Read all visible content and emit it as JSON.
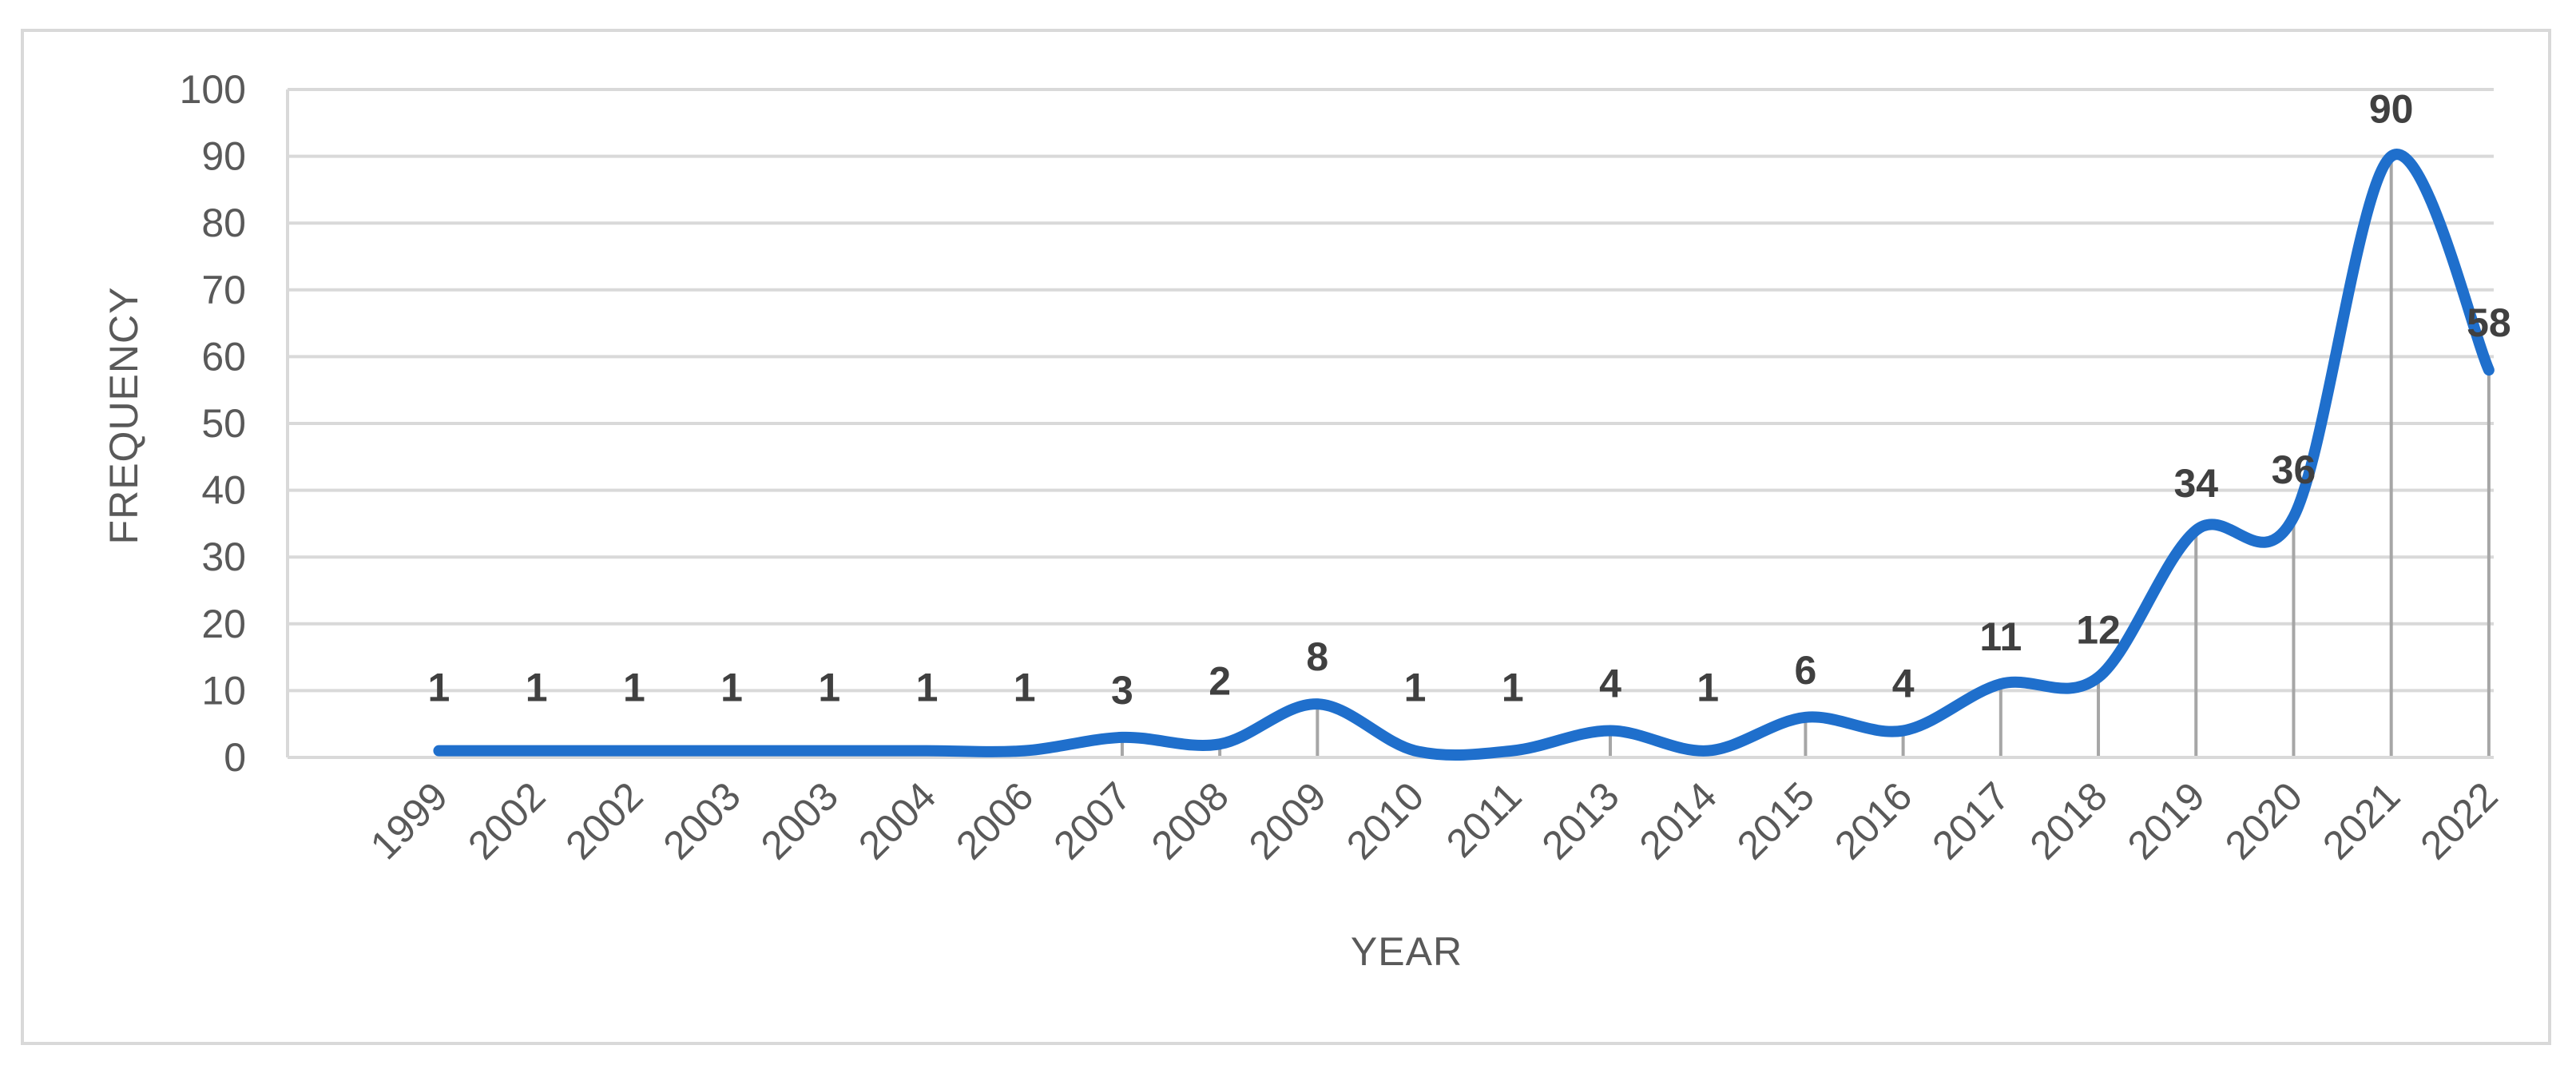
{
  "chart_data": {
    "type": "line",
    "smooth": true,
    "x": [
      "1999",
      "2002",
      "2002",
      "2003",
      "2003",
      "2004",
      "2006",
      "2007",
      "2008",
      "2009",
      "2010",
      "2011",
      "2013",
      "2014",
      "2015",
      "2016",
      "2017",
      "2018",
      "2019",
      "2020",
      "2021",
      "2022"
    ],
    "values": [
      1,
      1,
      1,
      1,
      1,
      1,
      1,
      3,
      2,
      8,
      1,
      1,
      4,
      1,
      6,
      4,
      11,
      12,
      34,
      36,
      90,
      58
    ],
    "data_labels": [
      "1",
      "1",
      "1",
      "1",
      "1",
      "1",
      "1",
      "3",
      "2",
      "8",
      "1",
      "1",
      "4",
      "1",
      "6",
      "4",
      "11",
      "12",
      "34",
      "36",
      "90",
      "58"
    ],
    "xlabel": "YEAR",
    "ylabel": "FREQUENCY",
    "ylim": [
      0,
      100
    ],
    "yticks": [
      "0",
      "10",
      "20",
      "30",
      "40",
      "50",
      "60",
      "70",
      "80",
      "90",
      "100"
    ],
    "grid": true,
    "drop_lines": true,
    "legend": "none",
    "colors": {
      "line": "#1f6fcc",
      "grid": "#d9d9d9",
      "drop_line": "#a6a6a6",
      "text": "#595959",
      "label": "#404040"
    }
  }
}
